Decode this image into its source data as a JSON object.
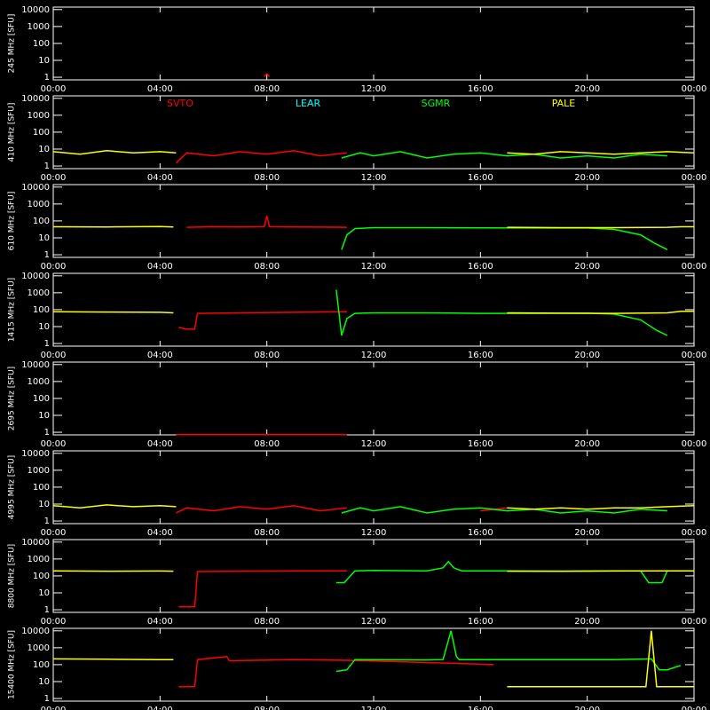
{
  "chart_data": [
    {
      "type": "line",
      "ylabel": "245 MHz [SFU]",
      "log_scale": true,
      "xlim": [
        0,
        24
      ],
      "ylim": [
        0.7,
        14000
      ],
      "xticks": [
        {
          "value": 0,
          "label": "00:00"
        },
        {
          "value": 4,
          "label": "04:00"
        },
        {
          "value": 8,
          "label": "08:00"
        },
        {
          "value": 12,
          "label": "12:00"
        },
        {
          "value": 16,
          "label": "16:00"
        },
        {
          "value": 20,
          "label": "20:00"
        },
        {
          "value": 24,
          "label": "00:00"
        }
      ],
      "yticks": [
        1,
        10,
        100,
        1000,
        10000
      ],
      "series": [
        {
          "color": "#ff0000",
          "x": [
            7.9,
            8.0,
            8.1
          ],
          "values": [
            1.1,
            1.6,
            1.1
          ]
        }
      ]
    },
    {
      "type": "line",
      "ylabel": "410 MHz [SFU]",
      "log_scale": true,
      "xlim": [
        0,
        24
      ],
      "ylim": [
        0.7,
        14000
      ],
      "legend": true,
      "xticks": [
        {
          "value": 0,
          "label": "00:00"
        },
        {
          "value": 4,
          "label": "04:00"
        },
        {
          "value": 8,
          "label": "08:00"
        },
        {
          "value": 12,
          "label": "12:00"
        },
        {
          "value": 16,
          "label": "16:00"
        },
        {
          "value": 20,
          "label": "20:00"
        },
        {
          "value": 24,
          "label": "00:00"
        }
      ],
      "yticks": [
        1,
        10,
        100,
        1000,
        10000
      ],
      "series": [
        {
          "name": "SVTO",
          "color": "#ff0000",
          "x": [
            4.6,
            5,
            6,
            7,
            8,
            9,
            10,
            11
          ],
          "values": [
            1.5,
            6,
            4,
            7,
            5,
            8,
            4,
            6
          ]
        },
        {
          "name": "LEAR",
          "color": "#00ffff",
          "x": [],
          "values": []
        },
        {
          "name": "SGMR",
          "color": "#00ff00",
          "x": [
            10.8,
            11.5,
            12,
            13,
            14,
            15,
            16,
            17,
            18,
            19,
            20,
            21,
            22,
            23
          ],
          "values": [
            3,
            6,
            4,
            7,
            3,
            5,
            6,
            4,
            5,
            3,
            4,
            3,
            5,
            4
          ]
        },
        {
          "name": "PALE",
          "color": "#ffff00",
          "x": [
            0,
            1,
            2,
            3,
            4,
            4.6,
            10,
            17,
            18,
            19,
            20,
            21,
            22,
            23,
            24
          ],
          "values": [
            7,
            5,
            8,
            6,
            7,
            6,
            null,
            6,
            5,
            7,
            6,
            5,
            6,
            7,
            6
          ]
        }
      ]
    },
    {
      "type": "line",
      "ylabel": "610 MHz [SFU]",
      "log_scale": true,
      "xlim": [
        0,
        24
      ],
      "ylim": [
        0.7,
        14000
      ],
      "xticks": [
        {
          "value": 0,
          "label": "00:00"
        },
        {
          "value": 4,
          "label": "04:00"
        },
        {
          "value": 8,
          "label": "08:00"
        },
        {
          "value": 12,
          "label": "12:00"
        },
        {
          "value": 16,
          "label": "16:00"
        },
        {
          "value": 20,
          "label": "20:00"
        },
        {
          "value": 24,
          "label": "00:00"
        }
      ],
      "yticks": [
        1,
        10,
        100,
        1000,
        10000
      ],
      "series": [
        {
          "color": "#ff0000",
          "x": [
            5,
            6,
            7,
            7.9,
            8,
            8.1,
            9,
            10,
            11
          ],
          "values": [
            42,
            45,
            44,
            45,
            200,
            45,
            44,
            43,
            42
          ]
        },
        {
          "color": "#00ff00",
          "x": [
            10.8,
            11,
            11.3,
            12,
            14,
            16,
            18,
            20,
            21,
            22,
            22.5,
            23
          ],
          "values": [
            2,
            15,
            35,
            40,
            40,
            39,
            38,
            38,
            32,
            15,
            5,
            2
          ]
        },
        {
          "color": "#ffff00",
          "x": [
            0,
            2,
            4,
            4.5,
            10,
            17,
            19,
            21,
            23,
            23.5,
            24
          ],
          "values": [
            45,
            44,
            46,
            44,
            null,
            42,
            40,
            40,
            42,
            45,
            45
          ]
        }
      ]
    },
    {
      "type": "line",
      "ylabel": "1415 MHz [SFU]",
      "log_scale": true,
      "xlim": [
        0,
        24
      ],
      "ylim": [
        0.7,
        14000
      ],
      "xticks": [
        {
          "value": 0,
          "label": "00:00"
        },
        {
          "value": 4,
          "label": "04:00"
        },
        {
          "value": 8,
          "label": "08:00"
        },
        {
          "value": 12,
          "label": "12:00"
        },
        {
          "value": 16,
          "label": "16:00"
        },
        {
          "value": 20,
          "label": "20:00"
        },
        {
          "value": 24,
          "label": "00:00"
        }
      ],
      "yticks": [
        1,
        10,
        100,
        1000,
        10000
      ],
      "series": [
        {
          "color": "#ff0000",
          "x": [
            4.7,
            5,
            5.3,
            5.4,
            7,
            9,
            11
          ],
          "values": [
            9,
            7,
            7,
            60,
            65,
            70,
            75
          ]
        },
        {
          "color": "#00ff00",
          "x": [
            10.6,
            10.8,
            11,
            11.3,
            12,
            14,
            16,
            18,
            20,
            21,
            22,
            22.6,
            23
          ],
          "values": [
            1500,
            3,
            30,
            60,
            65,
            65,
            60,
            60,
            62,
            55,
            25,
            6,
            3
          ]
        },
        {
          "color": "#ffff00",
          "x": [
            0,
            2,
            4,
            4.5,
            10,
            17,
            19,
            21,
            23,
            23.5,
            24
          ],
          "values": [
            75,
            72,
            70,
            65,
            null,
            65,
            62,
            60,
            65,
            80,
            80
          ]
        }
      ]
    },
    {
      "type": "line",
      "ylabel": "2695 MHz [SFU]",
      "log_scale": true,
      "xlim": [
        0,
        24
      ],
      "ylim": [
        0.7,
        14000
      ],
      "xticks": [
        {
          "value": 0,
          "label": "00:00"
        },
        {
          "value": 4,
          "label": "04:00"
        },
        {
          "value": 8,
          "label": "08:00"
        },
        {
          "value": 12,
          "label": "12:00"
        },
        {
          "value": 16,
          "label": "16:00"
        },
        {
          "value": 20,
          "label": "20:00"
        },
        {
          "value": 24,
          "label": "00:00"
        }
      ],
      "yticks": [
        1,
        10,
        100,
        1000,
        10000
      ],
      "series": [
        {
          "color": "#ff0000",
          "x": [
            4.6,
            11
          ],
          "values": [
            0.72,
            0.72
          ]
        }
      ]
    },
    {
      "type": "line",
      "ylabel": "4995 MHz [SFU]",
      "log_scale": true,
      "xlim": [
        0,
        24
      ],
      "ylim": [
        0.7,
        14000
      ],
      "xticks": [
        {
          "value": 0,
          "label": "00:00"
        },
        {
          "value": 4,
          "label": "04:00"
        },
        {
          "value": 8,
          "label": "08:00"
        },
        {
          "value": 12,
          "label": "12:00"
        },
        {
          "value": 16,
          "label": "16:00"
        },
        {
          "value": 20,
          "label": "20:00"
        },
        {
          "value": 24,
          "label": "00:00"
        }
      ],
      "yticks": [
        1,
        10,
        100,
        1000,
        10000
      ],
      "series": [
        {
          "color": "#ff0000",
          "x": [
            4.6,
            5,
            6,
            7,
            8,
            9,
            10,
            11,
            15,
            16,
            17
          ],
          "values": [
            3,
            6,
            4,
            7,
            5,
            8,
            4,
            6,
            null,
            4,
            6
          ]
        },
        {
          "color": "#00ff00",
          "x": [
            10.8,
            11.5,
            12,
            13,
            14,
            15,
            16,
            17,
            18,
            19,
            20,
            21,
            22,
            23
          ],
          "values": [
            3,
            6,
            4,
            7,
            3,
            5,
            6,
            4,
            5,
            3,
            4,
            3,
            5,
            4
          ]
        },
        {
          "color": "#ffff00",
          "x": [
            0,
            1,
            2,
            3,
            4,
            4.6,
            10,
            17,
            18,
            19,
            20,
            21,
            22,
            23,
            24
          ],
          "values": [
            8,
            6,
            9,
            7,
            8,
            7,
            null,
            6,
            5,
            6,
            5,
            6,
            6,
            7,
            8
          ]
        }
      ]
    },
    {
      "type": "line",
      "ylabel": "8800 MHz [SFU]",
      "log_scale": true,
      "xlim": [
        0,
        24
      ],
      "ylim": [
        0.7,
        14000
      ],
      "xticks": [
        {
          "value": 0,
          "label": "00:00"
        },
        {
          "value": 4,
          "label": "04:00"
        },
        {
          "value": 8,
          "label": "08:00"
        },
        {
          "value": 12,
          "label": "12:00"
        },
        {
          "value": 16,
          "label": "16:00"
        },
        {
          "value": 20,
          "label": "20:00"
        },
        {
          "value": 24,
          "label": "00:00"
        }
      ],
      "yticks": [
        1,
        10,
        100,
        1000,
        10000
      ],
      "series": [
        {
          "color": "#ff0000",
          "x": [
            4.7,
            5.3,
            5.4,
            7,
            9,
            11
          ],
          "values": [
            1.5,
            1.5,
            180,
            190,
            195,
            200
          ]
        },
        {
          "color": "#00ff00",
          "x": [
            10.6,
            10.9,
            11.3,
            12,
            14,
            14.6,
            14.8,
            15,
            15.3,
            17,
            19,
            21,
            22,
            22.3,
            22.8,
            23
          ],
          "values": [
            40,
            40,
            200,
            210,
            200,
            300,
            700,
            300,
            200,
            200,
            190,
            200,
            200,
            40,
            40,
            200
          ]
        },
        {
          "color": "#ffff00",
          "x": [
            0,
            2,
            4,
            4.5,
            10,
            17,
            19,
            21,
            23,
            24
          ],
          "values": [
            200,
            190,
            195,
            190,
            null,
            190,
            190,
            195,
            200,
            200
          ]
        }
      ]
    },
    {
      "type": "line",
      "ylabel": "15400 MHz [SFU]",
      "log_scale": true,
      "xlim": [
        0,
        24
      ],
      "ylim": [
        0.7,
        14000
      ],
      "xticks": [
        {
          "value": 0,
          "label": "00:00"
        },
        {
          "value": 4,
          "label": "04:00"
        },
        {
          "value": 8,
          "label": "08:00"
        },
        {
          "value": 12,
          "label": "12:00"
        },
        {
          "value": 16,
          "label": "16:00"
        },
        {
          "value": 20,
          "label": "20:00"
        },
        {
          "value": 24,
          "label": "00:00"
        }
      ],
      "yticks": [
        1,
        10,
        100,
        1000,
        10000
      ],
      "series": [
        {
          "color": "#ff0000",
          "x": [
            4.7,
            5.3,
            5.4,
            6.5,
            6.6,
            9,
            11,
            13,
            15,
            16.5
          ],
          "values": [
            5,
            5,
            200,
            300,
            170,
            200,
            180,
            150,
            120,
            100
          ]
        },
        {
          "color": "#00ff00",
          "x": [
            10.6,
            11,
            11.3,
            14,
            14.6,
            14.9,
            15.1,
            15.2,
            17,
            19,
            21,
            22.4,
            22.7,
            23,
            23.5
          ],
          "values": [
            40,
            50,
            200,
            190,
            200,
            10000,
            300,
            200,
            200,
            200,
            200,
            220,
            50,
            50,
            90
          ]
        },
        {
          "color": "#ffff00",
          "x": [
            0,
            2,
            4,
            4.5,
            10,
            17,
            19,
            21,
            22.2,
            22.4,
            22.6,
            23,
            24
          ],
          "values": [
            220,
            210,
            200,
            200,
            null,
            5,
            5,
            5,
            5,
            10000,
            5,
            5,
            5
          ]
        }
      ]
    }
  ]
}
